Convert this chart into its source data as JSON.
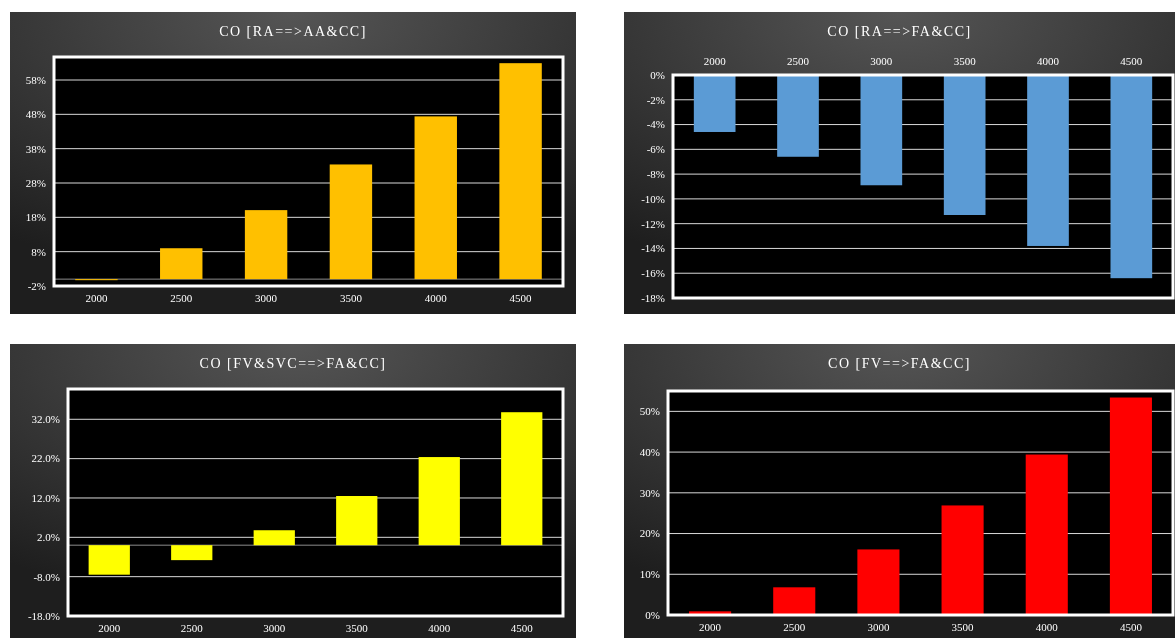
{
  "chart_data": [
    {
      "type": "bar",
      "title": "CO [RA==>AA&CC]",
      "categories": [
        "2000",
        "2500",
        "3000",
        "3500",
        "4000",
        "4500"
      ],
      "values": [
        -0.3,
        9.0,
        20.1,
        33.4,
        47.4,
        62.9
      ],
      "color": "#ffc000",
      "ylim": [
        -2,
        64.7
      ],
      "yticks": [
        {
          "value": -2,
          "label": "-2%"
        },
        {
          "value": 8,
          "label": "8%"
        },
        {
          "value": 18,
          "label": "18%"
        },
        {
          "value": 28,
          "label": "28%"
        },
        {
          "value": 38,
          "label": "38%"
        },
        {
          "value": 48,
          "label": "48%"
        },
        {
          "value": 58,
          "label": "58%"
        }
      ],
      "grid": "y"
    },
    {
      "type": "bar",
      "title": "CO [RA==>FA&CC]",
      "categories": [
        "2000",
        "2500",
        "3000",
        "3500",
        "4000",
        "4500"
      ],
      "values": [
        -4.6,
        -6.6,
        -8.9,
        -11.3,
        -13.8,
        -16.4
      ],
      "color": "#5b9bd5",
      "ylim": [
        -18,
        0
      ],
      "yticks": [
        {
          "value": -18,
          "label": "-18%"
        },
        {
          "value": -16,
          "label": "-16%"
        },
        {
          "value": -14,
          "label": "-14%"
        },
        {
          "value": -12,
          "label": "-12%"
        },
        {
          "value": -10,
          "label": "-10%"
        },
        {
          "value": -8,
          "label": "-8%"
        },
        {
          "value": -6,
          "label": "-6%"
        },
        {
          "value": -4,
          "label": "-4%"
        },
        {
          "value": -2,
          "label": "-2%"
        },
        {
          "value": 0,
          "label": "0%"
        }
      ],
      "grid": "y"
    },
    {
      "type": "bar",
      "title": "CO [FV&SVC==>FA&CC]",
      "categories": [
        "2000",
        "2500",
        "3000",
        "3500",
        "4000",
        "4500"
      ],
      "values": [
        -7.5,
        -3.8,
        3.8,
        12.5,
        22.4,
        33.8
      ],
      "color": "#ffff00",
      "ylim": [
        -18,
        39.7
      ],
      "yticks": [
        {
          "value": -18,
          "label": "-18.0%"
        },
        {
          "value": -8,
          "label": "-8.0%"
        },
        {
          "value": 2,
          "label": "2.0%"
        },
        {
          "value": 12,
          "label": "12.0%"
        },
        {
          "value": 22,
          "label": "22.0%"
        },
        {
          "value": 32,
          "label": "32.0%"
        }
      ],
      "grid": "y"
    },
    {
      "type": "bar",
      "title": "CO [FV==>FA&CC]",
      "categories": [
        "2000",
        "2500",
        "3000",
        "3500",
        "4000",
        "4500"
      ],
      "values": [
        0.9,
        6.8,
        16.1,
        26.9,
        39.4,
        53.4
      ],
      "color": "#ff0000",
      "ylim": [
        0,
        55
      ],
      "yticks": [
        {
          "value": 0,
          "label": "0%"
        },
        {
          "value": 10,
          "label": "10%"
        },
        {
          "value": 20,
          "label": "20%"
        },
        {
          "value": 30,
          "label": "30%"
        },
        {
          "value": 40,
          "label": "40%"
        },
        {
          "value": 50,
          "label": "50%"
        }
      ],
      "grid": "y"
    }
  ]
}
